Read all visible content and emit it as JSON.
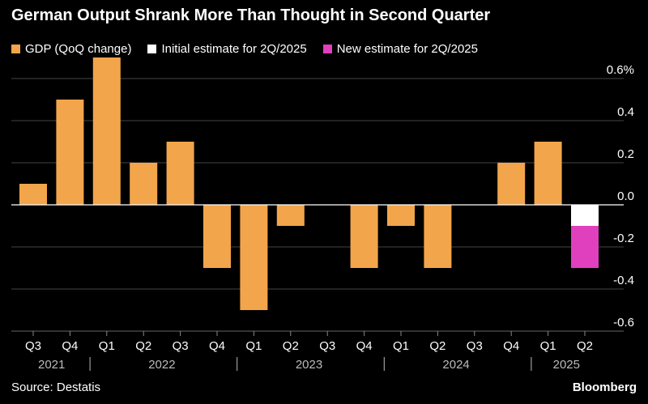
{
  "chart_data": {
    "type": "bar",
    "title": "German Output Shrank More Than Thought in Second Quarter",
    "categories": [
      "Q3",
      "Q4",
      "Q1",
      "Q2",
      "Q3",
      "Q4",
      "Q1",
      "Q2",
      "Q3",
      "Q4",
      "Q1",
      "Q2",
      "Q3",
      "Q4",
      "Q1",
      "Q2"
    ],
    "years": [
      {
        "label": "2021",
        "from": 0,
        "to": 1
      },
      {
        "label": "2022",
        "from": 2,
        "to": 5
      },
      {
        "label": "2023",
        "from": 6,
        "to": 9
      },
      {
        "label": "2024",
        "from": 10,
        "to": 13
      },
      {
        "label": "2025",
        "from": 14,
        "to": 15
      }
    ],
    "series": [
      {
        "name": "GDP (QoQ change)",
        "color": "#f2a54a",
        "values": [
          0.1,
          0.5,
          0.7,
          0.2,
          0.3,
          -0.3,
          -0.5,
          -0.1,
          0.0,
          -0.3,
          -0.1,
          -0.3,
          0.0,
          0.2,
          0.3,
          null
        ]
      },
      {
        "name": "Initial estimate for 2Q/2025",
        "color": "#ffffff",
        "values": [
          null,
          null,
          null,
          null,
          null,
          null,
          null,
          null,
          null,
          null,
          null,
          null,
          null,
          null,
          null,
          -0.1
        ]
      },
      {
        "name": "New estimate for 2Q/2025",
        "color": "#e03fbd",
        "values": [
          null,
          null,
          null,
          null,
          null,
          null,
          null,
          null,
          null,
          null,
          null,
          null,
          null,
          null,
          null,
          -0.3
        ]
      }
    ],
    "yticks": [
      0.6,
      0.4,
      0.2,
      0.0,
      -0.2,
      -0.4,
      -0.6
    ],
    "ytick_labels": [
      "0.6%",
      "0.4",
      "0.2",
      "0.0",
      "-0.2",
      "-0.4",
      "-0.6"
    ],
    "ylim": [
      -0.6,
      0.6
    ],
    "grid": true,
    "legend": "top-left",
    "source": "Source: Destatis",
    "brand": "Bloomberg"
  }
}
